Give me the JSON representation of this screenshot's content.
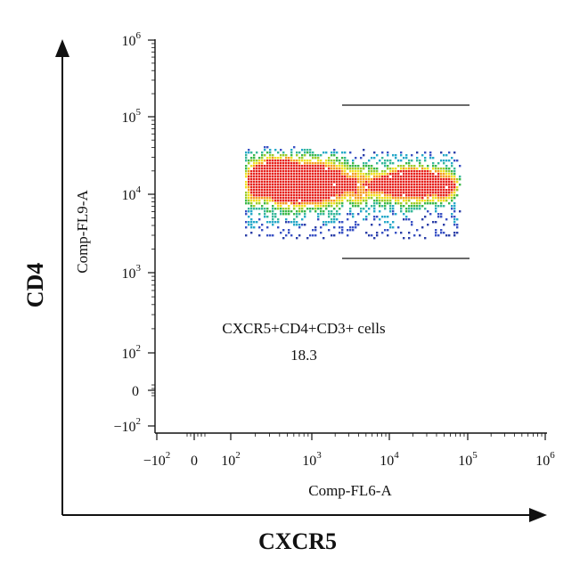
{
  "chart_data": {
    "type": "scatter",
    "subtype": "flow-cytometry-density",
    "outer_axes": {
      "xlabel": "CXCR5",
      "ylabel": "CD4"
    },
    "x_axis": {
      "label": "Comp-FL6-A",
      "scale": "biexponential",
      "ticks": [
        {
          "base": "−10",
          "sup": "2"
        },
        {
          "base": "0",
          "sup": ""
        },
        {
          "base": "10",
          "sup": "2"
        },
        {
          "base": "10",
          "sup": "3"
        },
        {
          "base": "10",
          "sup": "4"
        },
        {
          "base": "10",
          "sup": "5"
        },
        {
          "base": "10",
          "sup": "6"
        }
      ]
    },
    "y_axis": {
      "label": "Comp-FL9-A",
      "scale": "biexponential",
      "ticks": [
        {
          "base": "10",
          "sup": "6"
        },
        {
          "base": "10",
          "sup": "5"
        },
        {
          "base": "10",
          "sup": "4"
        },
        {
          "base": "10",
          "sup": "3"
        },
        {
          "base": "10",
          "sup": "2"
        },
        {
          "base": "0",
          "sup": ""
        },
        {
          "base": "−10",
          "sup": "2"
        }
      ]
    },
    "gate": {
      "label": "CXCR5+CD4+CD3+ cells",
      "value": "18.3",
      "x_range": [
        2500,
        100000
      ],
      "y_range": [
        1500,
        140000
      ]
    },
    "population": {
      "description": "dense events cluster",
      "x_range": [
        150,
        80000
      ],
      "y_range": [
        2500,
        40000
      ],
      "peak": {
        "x": 450,
        "y": 15000
      },
      "secondary_peak": {
        "x": 20000,
        "y": 14000
      }
    },
    "colors": {
      "low": "#2c3fa8",
      "mid_low": "#27a9c9",
      "mid": "#3cb84a",
      "mid_high": "#f0e020",
      "high": "#e6231e"
    }
  }
}
